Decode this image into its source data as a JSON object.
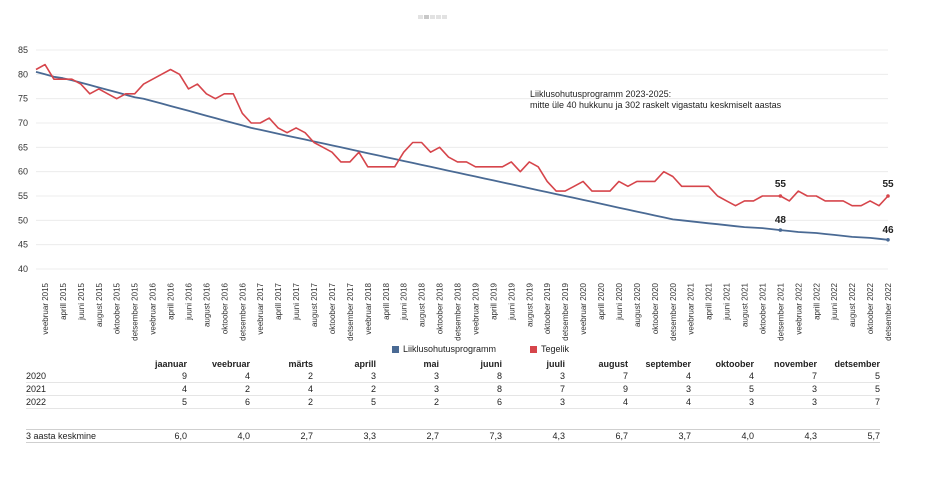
{
  "chart_data": {
    "type": "line",
    "ylim": [
      40,
      85
    ],
    "yticks": [
      40,
      45,
      50,
      55,
      60,
      65,
      70,
      75,
      80,
      85
    ],
    "x": [
      "2015-01",
      "2015-02",
      "2015-03",
      "2015-04",
      "2015-05",
      "2015-06",
      "2015-07",
      "2015-08",
      "2015-09",
      "2015-10",
      "2015-11",
      "2015-12",
      "2016-01",
      "2016-02",
      "2016-03",
      "2016-04",
      "2016-05",
      "2016-06",
      "2016-07",
      "2016-08",
      "2016-09",
      "2016-10",
      "2016-11",
      "2016-12",
      "2017-01",
      "2017-02",
      "2017-03",
      "2017-04",
      "2017-05",
      "2017-06",
      "2017-07",
      "2017-08",
      "2017-09",
      "2017-10",
      "2017-11",
      "2017-12",
      "2018-01",
      "2018-02",
      "2018-03",
      "2018-04",
      "2018-05",
      "2018-06",
      "2018-07",
      "2018-08",
      "2018-09",
      "2018-10",
      "2018-11",
      "2018-12",
      "2019-01",
      "2019-02",
      "2019-03",
      "2019-04",
      "2019-05",
      "2019-06",
      "2019-07",
      "2019-08",
      "2019-09",
      "2019-10",
      "2019-11",
      "2019-12",
      "2020-01",
      "2020-02",
      "2020-03",
      "2020-04",
      "2020-05",
      "2020-06",
      "2020-07",
      "2020-08",
      "2020-09",
      "2020-10",
      "2020-11",
      "2020-12",
      "2021-01",
      "2021-02",
      "2021-03",
      "2021-04",
      "2021-05",
      "2021-06",
      "2021-07",
      "2021-08",
      "2021-09",
      "2021-10",
      "2021-11",
      "2021-12",
      "2022-01",
      "2022-02",
      "2022-03",
      "2022-04",
      "2022-05",
      "2022-06",
      "2022-07",
      "2022-08",
      "2022-09",
      "2022-10",
      "2022-11",
      "2022-12"
    ],
    "xtick_labels": [
      "veebruar 2015",
      "aprill 2015",
      "juuni 2015",
      "august 2015",
      "oktoober 2015",
      "detsember 2015",
      "veebruar 2016",
      "aprill 2016",
      "juuni 2016",
      "august 2016",
      "oktoober 2016",
      "detsember 2016",
      "veebruar 2017",
      "aprill 2017",
      "juuni 2017",
      "august 2017",
      "oktoober 2017",
      "detsember 2017",
      "veebruar 2018",
      "aprill 2018",
      "juuni 2018",
      "august 2018",
      "oktoober 2018",
      "detsember 2018",
      "veebruar 2019",
      "aprill 2019",
      "juuni 2019",
      "august 2019",
      "oktoober 2019",
      "detsember 2019",
      "veebruar 2020",
      "aprill 2020",
      "juuni 2020",
      "august 2020",
      "oktoober 2020",
      "detsember 2020",
      "veebruar 2021",
      "aprill 2021",
      "juuni 2021",
      "august 2021",
      "oktoober 2021",
      "detsember 2021",
      "veebruar 2022",
      "aprill 2022",
      "juuni 2022",
      "august 2022",
      "oktoober 2022",
      "detsember 2022"
    ],
    "series": [
      {
        "name": "Liiklusohutusprogramm",
        "color": "#4a6a94",
        "values": [
          80.5,
          80.0,
          79.5,
          79.2,
          78.8,
          78.3,
          77.8,
          77.3,
          76.8,
          76.3,
          75.8,
          75.3,
          75.0,
          74.5,
          74.0,
          73.5,
          73.0,
          72.5,
          72.0,
          71.5,
          71.0,
          70.5,
          70.0,
          69.5,
          69.0,
          68.6,
          68.2,
          67.8,
          67.4,
          67.0,
          66.6,
          66.2,
          65.8,
          65.4,
          65.0,
          64.6,
          64.2,
          63.8,
          63.4,
          63.0,
          62.6,
          62.2,
          61.8,
          61.4,
          61.0,
          60.6,
          60.2,
          59.8,
          59.4,
          59.0,
          58.6,
          58.2,
          57.8,
          57.4,
          57.0,
          56.6,
          56.2,
          55.8,
          55.4,
          55.0,
          54.6,
          54.2,
          53.8,
          53.4,
          53.0,
          52.6,
          52.2,
          51.8,
          51.4,
          51.0,
          50.6,
          50.2,
          50.0,
          49.8,
          49.6,
          49.4,
          49.2,
          49.0,
          48.8,
          48.6,
          48.5,
          48.4,
          48.2,
          48.0,
          47.8,
          47.6,
          47.5,
          47.4,
          47.2,
          47.0,
          46.8,
          46.6,
          46.5,
          46.4,
          46.2,
          46.0
        ]
      },
      {
        "name": "Tegelik",
        "color": "#d6454b",
        "values": [
          81,
          82,
          79,
          79,
          79,
          78,
          76,
          77,
          76,
          75,
          76,
          76,
          78,
          79,
          80,
          81,
          80,
          77,
          78,
          76,
          75,
          76,
          76,
          72,
          70,
          70,
          71,
          69,
          68,
          69,
          68,
          66,
          65,
          64,
          62,
          62,
          64,
          61,
          61,
          61,
          61,
          64,
          66,
          66,
          64,
          65,
          63,
          62,
          62,
          61,
          61,
          61,
          61,
          62,
          60,
          62,
          61,
          58,
          56,
          56,
          57,
          58,
          56,
          56,
          56,
          58,
          57,
          58,
          58,
          58,
          60,
          59,
          57,
          57,
          57,
          57,
          55,
          54,
          53,
          54,
          54,
          55,
          55,
          55,
          54,
          56,
          55,
          55,
          54,
          54,
          54,
          53,
          53,
          54,
          53,
          55
        ]
      }
    ],
    "annotation": [
      "Liiklusohutusprogramm 2023-2025:",
      "mitte üle 40 hukkunu ja 302 raskelt vigastatu keskmiselt aastas"
    ],
    "point_labels": [
      {
        "x": "2021-12",
        "series": "Tegelik",
        "label": "55"
      },
      {
        "x": "2021-12",
        "series": "Liiklusohutusprogramm",
        "label": "48"
      },
      {
        "x": "2022-12",
        "series": "Tegelik",
        "label": "55"
      },
      {
        "x": "2022-12",
        "series": "Liiklusohutusprogramm",
        "label": "46"
      }
    ],
    "grid": true,
    "legend_position": "bottom"
  },
  "table": {
    "months": [
      "jaanuar",
      "veebruar",
      "märts",
      "aprill",
      "mai",
      "juuni",
      "juuli",
      "august",
      "september",
      "oktoober",
      "november",
      "detsember"
    ],
    "rows": [
      {
        "label": "2020",
        "values": [
          "9",
          "4",
          "2",
          "3",
          "3",
          "8",
          "3",
          "7",
          "4",
          "4",
          "7",
          "5"
        ]
      },
      {
        "label": "2021",
        "values": [
          "4",
          "2",
          "4",
          "2",
          "3",
          "8",
          "7",
          "9",
          "3",
          "5",
          "3",
          "5"
        ]
      },
      {
        "label": "2022",
        "values": [
          "5",
          "6",
          "2",
          "5",
          "2",
          "6",
          "3",
          "4",
          "4",
          "3",
          "3",
          "7"
        ]
      }
    ],
    "average": {
      "label": "3 aasta keskmine",
      "values": [
        "6,0",
        "4,0",
        "2,7",
        "3,3",
        "2,7",
        "7,3",
        "4,3",
        "6,7",
        "3,7",
        "4,0",
        "4,3",
        "5,7"
      ]
    }
  }
}
